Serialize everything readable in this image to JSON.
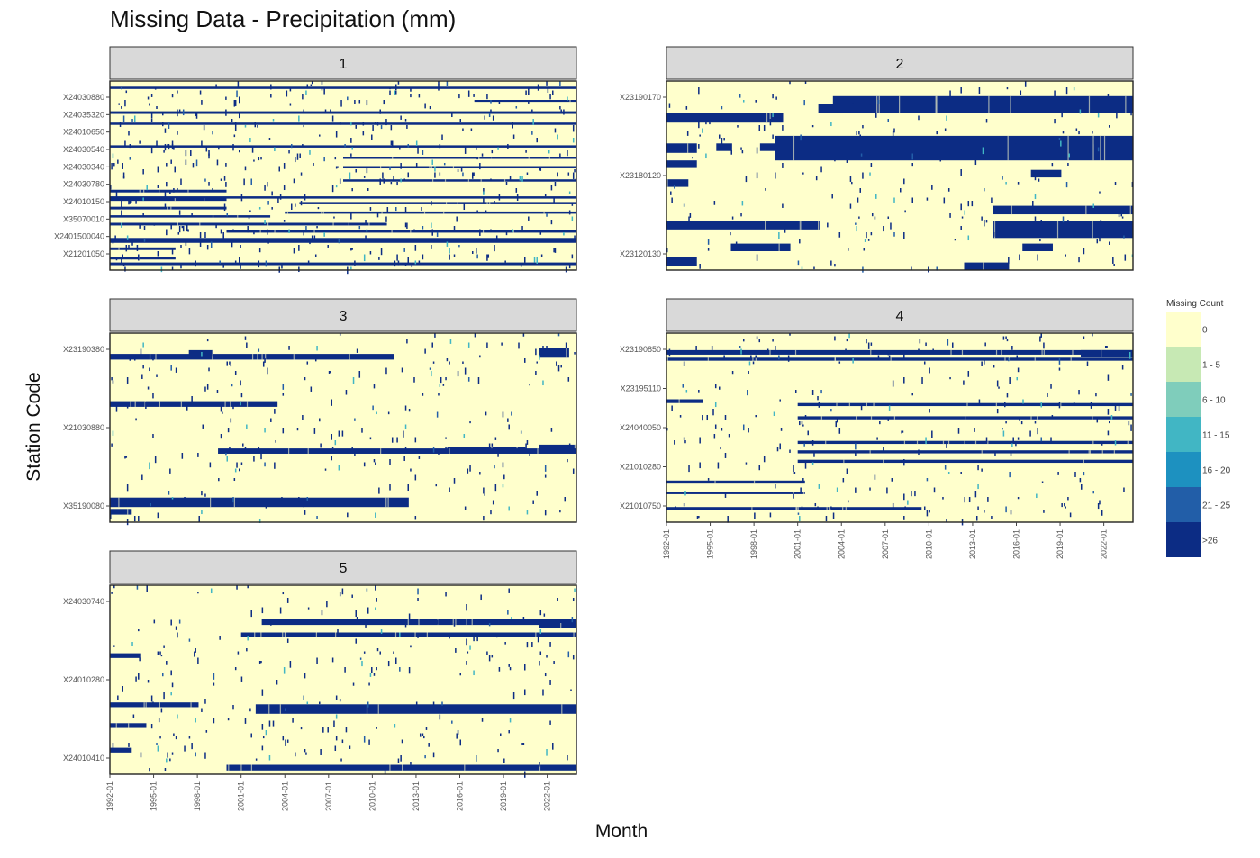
{
  "chart_data": {
    "type": "heatmap",
    "title": "Missing Data - Precipitation (mm)",
    "xlabel": "Month",
    "ylabel": "Station Code",
    "x_range": [
      "1992-01",
      "2023-12"
    ],
    "x_ticks": [
      "1992-01",
      "1995-01",
      "1998-01",
      "2001-01",
      "2004-01",
      "2007-01",
      "2010-01",
      "2013-01",
      "2016-01",
      "2019-01",
      "2022-01"
    ],
    "legend": {
      "title": "Missing Count",
      "position": "right",
      "classes": [
        {
          "label": "0",
          "color": "#ffffcc"
        },
        {
          "label": "1 - 5",
          "color": "#c7e9b4"
        },
        {
          "label": "6 - 10",
          "color": "#7fcdbb"
        },
        {
          "label": "11 - 15",
          "color": "#41b6c4"
        },
        {
          "label": "16 - 20",
          "color": "#1d91c0"
        },
        {
          "label": "21 - 25",
          "color": "#225ea8"
        },
        {
          "label": ">26",
          "color": "#0c2c84"
        }
      ]
    },
    "panels": [
      {
        "strip": "1",
        "y_labels": [
          "X24030880",
          "X24035320",
          "X24010650",
          "X24030540",
          "X24030340",
          "X24030780",
          "X24010150",
          "X35070010",
          "X2401500040",
          "X21201050"
        ],
        "full_bands": [
          {
            "row": 0.03,
            "height": 0.012,
            "from": "1992-01",
            "to": "2023-12"
          },
          {
            "row": 0.16,
            "height": 0.014,
            "from": "1992-01",
            "to": "2023-12"
          },
          {
            "row": 0.22,
            "height": 0.012,
            "from": "1992-01",
            "to": "2023-12"
          },
          {
            "row": 0.34,
            "height": 0.012,
            "from": "1992-01",
            "to": "2023-12"
          },
          {
            "row": 0.61,
            "height": 0.012,
            "from": "1992-01",
            "to": "2023-12"
          },
          {
            "row": 0.83,
            "height": 0.026,
            "from": "1992-01",
            "to": "2023-12"
          },
          {
            "row": 0.96,
            "height": 0.014,
            "from": "1992-01",
            "to": "2023-12"
          }
        ],
        "bands": [
          {
            "row": 0.4,
            "height": 0.012,
            "from": "2008-01",
            "to": "2023-12"
          },
          {
            "row": 0.45,
            "height": 0.012,
            "from": "2008-01",
            "to": "2023-12"
          },
          {
            "row": 0.52,
            "height": 0.012,
            "from": "2008-01",
            "to": "2023-12"
          },
          {
            "row": 0.575,
            "height": 0.014,
            "from": "1992-01",
            "to": "1999-12"
          },
          {
            "row": 0.62,
            "height": 0.014,
            "from": "1992-01",
            "to": "1999-12"
          },
          {
            "row": 0.665,
            "height": 0.014,
            "from": "1992-01",
            "to": "1999-12"
          },
          {
            "row": 0.71,
            "height": 0.012,
            "from": "1992-01",
            "to": "2002-12"
          },
          {
            "row": 0.75,
            "height": 0.014,
            "from": "1992-01",
            "to": "2010-12"
          },
          {
            "row": 0.64,
            "height": 0.012,
            "from": "2005-01",
            "to": "2023-12"
          },
          {
            "row": 0.69,
            "height": 0.012,
            "from": "2004-01",
            "to": "2023-12"
          },
          {
            "row": 0.79,
            "height": 0.012,
            "from": "2000-01",
            "to": "2023-12"
          },
          {
            "row": 0.88,
            "height": 0.014,
            "from": "1992-01",
            "to": "1996-06"
          },
          {
            "row": 0.93,
            "height": 0.014,
            "from": "1992-01",
            "to": "1996-06"
          },
          {
            "row": 0.1,
            "height": 0.01,
            "from": "2017-01",
            "to": "2023-12"
          }
        ],
        "speckle": 0.02
      },
      {
        "strip": "2",
        "y_labels": [
          "X23190170",
          "X23180120",
          "X23120130"
        ],
        "bands": [
          {
            "row": 0.08,
            "height": 0.09,
            "from": "2003-06",
            "to": "2023-12"
          },
          {
            "row": 0.12,
            "height": 0.05,
            "from": "2002-06",
            "to": "2003-06"
          },
          {
            "row": 0.17,
            "height": 0.05,
            "from": "1992-01",
            "to": "1999-12"
          },
          {
            "row": 0.29,
            "height": 0.13,
            "from": "1999-06",
            "to": "2023-12"
          },
          {
            "row": 0.33,
            "height": 0.05,
            "from": "1992-01",
            "to": "1994-01"
          },
          {
            "row": 0.33,
            "height": 0.04,
            "from": "1995-06",
            "to": "1996-06"
          },
          {
            "row": 0.33,
            "height": 0.04,
            "from": "1998-06",
            "to": "2000-01"
          },
          {
            "row": 0.42,
            "height": 0.04,
            "from": "1992-01",
            "to": "1994-01"
          },
          {
            "row": 0.52,
            "height": 0.04,
            "from": "1992-01",
            "to": "1993-06"
          },
          {
            "row": 0.47,
            "height": 0.04,
            "from": "2017-01",
            "to": "2019-01"
          },
          {
            "row": 0.66,
            "height": 0.045,
            "from": "2014-06",
            "to": "2023-12"
          },
          {
            "row": 0.74,
            "height": 0.045,
            "from": "1992-01",
            "to": "2002-06"
          },
          {
            "row": 0.74,
            "height": 0.09,
            "from": "2014-06",
            "to": "2023-12"
          },
          {
            "row": 0.86,
            "height": 0.04,
            "from": "1996-06",
            "to": "2000-06"
          },
          {
            "row": 0.86,
            "height": 0.04,
            "from": "2016-06",
            "to": "2018-06"
          },
          {
            "row": 0.93,
            "height": 0.05,
            "from": "1992-01",
            "to": "1994-01"
          },
          {
            "row": 0.96,
            "height": 0.04,
            "from": "2012-06",
            "to": "2015-06"
          }
        ],
        "speckle": 0.012
      },
      {
        "strip": "3",
        "y_labels": [
          "X23190380",
          "X21030880",
          "X35190080"
        ],
        "bands": [
          {
            "row": 0.11,
            "height": 0.03,
            "from": "1992-01",
            "to": "2011-06"
          },
          {
            "row": 0.09,
            "height": 0.03,
            "from": "1997-06",
            "to": "1999-01"
          },
          {
            "row": 0.36,
            "height": 0.03,
            "from": "1992-01",
            "to": "2003-06"
          },
          {
            "row": 0.6,
            "height": 0.03,
            "from": "2015-01",
            "to": "2020-06"
          },
          {
            "row": 0.59,
            "height": 0.04,
            "from": "2021-06",
            "to": "2023-12"
          },
          {
            "row": 0.61,
            "height": 0.028,
            "from": "1999-06",
            "to": "2023-12"
          },
          {
            "row": 0.87,
            "height": 0.05,
            "from": "1992-01",
            "to": "2012-06"
          },
          {
            "row": 0.93,
            "height": 0.03,
            "from": "1992-01",
            "to": "1993-06"
          },
          {
            "row": 0.08,
            "height": 0.05,
            "from": "2021-06",
            "to": "2023-06"
          }
        ],
        "speckle": 0.012
      },
      {
        "strip": "4",
        "y_labels": [
          "X23190850",
          "X23195110",
          "X24040050",
          "X21010280",
          "X21010750"
        ],
        "bands": [
          {
            "row": 0.09,
            "height": 0.024,
            "from": "1992-01",
            "to": "2023-12"
          },
          {
            "row": 0.13,
            "height": 0.016,
            "from": "1992-01",
            "to": "2023-12"
          },
          {
            "row": 0.09,
            "height": 0.036,
            "from": "2020-06",
            "to": "2023-12"
          },
          {
            "row": 0.35,
            "height": 0.02,
            "from": "1992-01",
            "to": "1994-06"
          },
          {
            "row": 0.37,
            "height": 0.016,
            "from": "2001-01",
            "to": "2023-12"
          },
          {
            "row": 0.44,
            "height": 0.016,
            "from": "2001-01",
            "to": "2023-12"
          },
          {
            "row": 0.57,
            "height": 0.016,
            "from": "2001-01",
            "to": "2023-12"
          },
          {
            "row": 0.62,
            "height": 0.016,
            "from": "2001-01",
            "to": "2023-12"
          },
          {
            "row": 0.67,
            "height": 0.016,
            "from": "2001-01",
            "to": "2023-12"
          },
          {
            "row": 0.78,
            "height": 0.016,
            "from": "1992-01",
            "to": "2001-06"
          },
          {
            "row": 0.84,
            "height": 0.012,
            "from": "1992-01",
            "to": "2001-06"
          },
          {
            "row": 0.92,
            "height": 0.016,
            "from": "1992-01",
            "to": "2009-06"
          }
        ],
        "speckle": 0.012
      },
      {
        "strip": "5",
        "y_labels": [
          "X24030740",
          "X24010280",
          "X24010410"
        ],
        "bands": [
          {
            "row": 0.18,
            "height": 0.03,
            "from": "2002-06",
            "to": "2023-12"
          },
          {
            "row": 0.2,
            "height": 0.025,
            "from": "2021-06",
            "to": "2023-12"
          },
          {
            "row": 0.25,
            "height": 0.025,
            "from": "2001-01",
            "to": "2023-12"
          },
          {
            "row": 0.36,
            "height": 0.025,
            "from": "1992-01",
            "to": "1994-01"
          },
          {
            "row": 0.62,
            "height": 0.025,
            "from": "1992-01",
            "to": "1998-01"
          },
          {
            "row": 0.63,
            "height": 0.05,
            "from": "2002-01",
            "to": "2023-12"
          },
          {
            "row": 0.73,
            "height": 0.025,
            "from": "1992-01",
            "to": "1994-06"
          },
          {
            "row": 0.86,
            "height": 0.025,
            "from": "1992-01",
            "to": "1993-06"
          },
          {
            "row": 0.95,
            "height": 0.03,
            "from": "2000-01",
            "to": "2023-12"
          }
        ],
        "speckle": 0.012
      }
    ]
  }
}
